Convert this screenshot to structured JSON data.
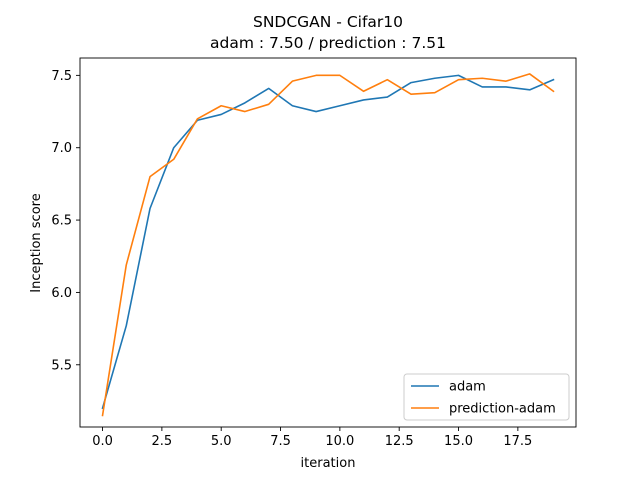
{
  "chart_data": {
    "type": "line",
    "title": "SNDCGAN - Cifar10",
    "subtitle": "adam : 7.50 /  prediction : 7.51",
    "xlabel": "iteration",
    "ylabel": "Inception score",
    "xlim": [
      -0.95,
      19.95
    ],
    "ylim": [
      5.07,
      7.62
    ],
    "xticks": [
      0.0,
      2.5,
      5.0,
      7.5,
      10.0,
      12.5,
      15.0,
      17.5
    ],
    "xtick_labels": [
      "0.0",
      "2.5",
      "5.0",
      "7.5",
      "10.0",
      "12.5",
      "15.0",
      "17.5"
    ],
    "yticks": [
      5.5,
      6.0,
      6.5,
      7.0,
      7.5
    ],
    "ytick_labels": [
      "5.5",
      "6.0",
      "6.5",
      "7.0",
      "7.5"
    ],
    "grid": false,
    "legend_position": "lower-right",
    "x": [
      0,
      1,
      2,
      3,
      4,
      5,
      6,
      7,
      8,
      9,
      10,
      11,
      12,
      13,
      14,
      15,
      16,
      17,
      18,
      19
    ],
    "series": [
      {
        "name": "adam",
        "color": "#1f77b4",
        "values": [
          5.2,
          5.77,
          6.58,
          7.0,
          7.19,
          7.23,
          7.31,
          7.41,
          7.29,
          7.25,
          7.29,
          7.33,
          7.35,
          7.45,
          7.48,
          7.5,
          7.42,
          7.42,
          7.4,
          7.47
        ]
      },
      {
        "name": "prediction-adam",
        "color": "#ff7f0e",
        "values": [
          5.15,
          6.19,
          6.8,
          6.92,
          7.2,
          7.29,
          7.25,
          7.3,
          7.46,
          7.5,
          7.5,
          7.39,
          7.47,
          7.37,
          7.38,
          7.47,
          7.48,
          7.46,
          7.51,
          7.39
        ]
      }
    ]
  }
}
